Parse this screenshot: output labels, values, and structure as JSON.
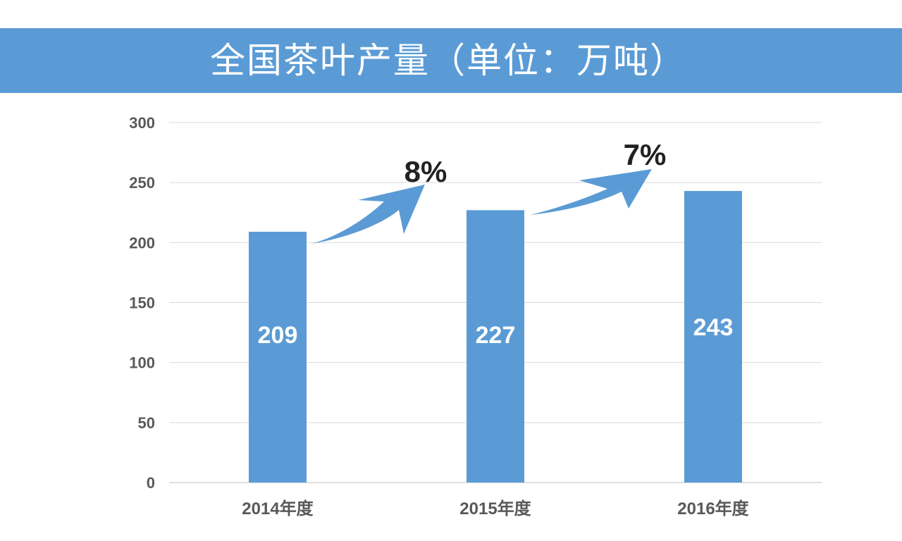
{
  "header": {
    "title": "全国茶叶产量（单位：万吨）"
  },
  "colors": {
    "banner": "#5b9bd5",
    "bar": "#5b9bd5",
    "arrow": "#5b9bd5",
    "grid": "#d9d9d9",
    "axis_text": "#595959"
  },
  "chart_data": {
    "type": "bar",
    "title": "全国茶叶产量（单位：万吨）",
    "categories": [
      "2014年度",
      "2015年度",
      "2016年度"
    ],
    "values": [
      209,
      227,
      243
    ],
    "data_labels": [
      "209",
      "227",
      "243"
    ],
    "ylim": [
      0,
      300
    ],
    "yticks": [
      "0",
      "50",
      "100",
      "150",
      "200",
      "250",
      "300"
    ],
    "grid": true,
    "legend": "none",
    "annotations": [
      {
        "text": "8%",
        "from_category": "2014年度",
        "to_category": "2015年度",
        "shape": "curved-arrow"
      },
      {
        "text": "7%",
        "from_category": "2015年度",
        "to_category": "2016年度",
        "shape": "curved-arrow"
      }
    ]
  }
}
